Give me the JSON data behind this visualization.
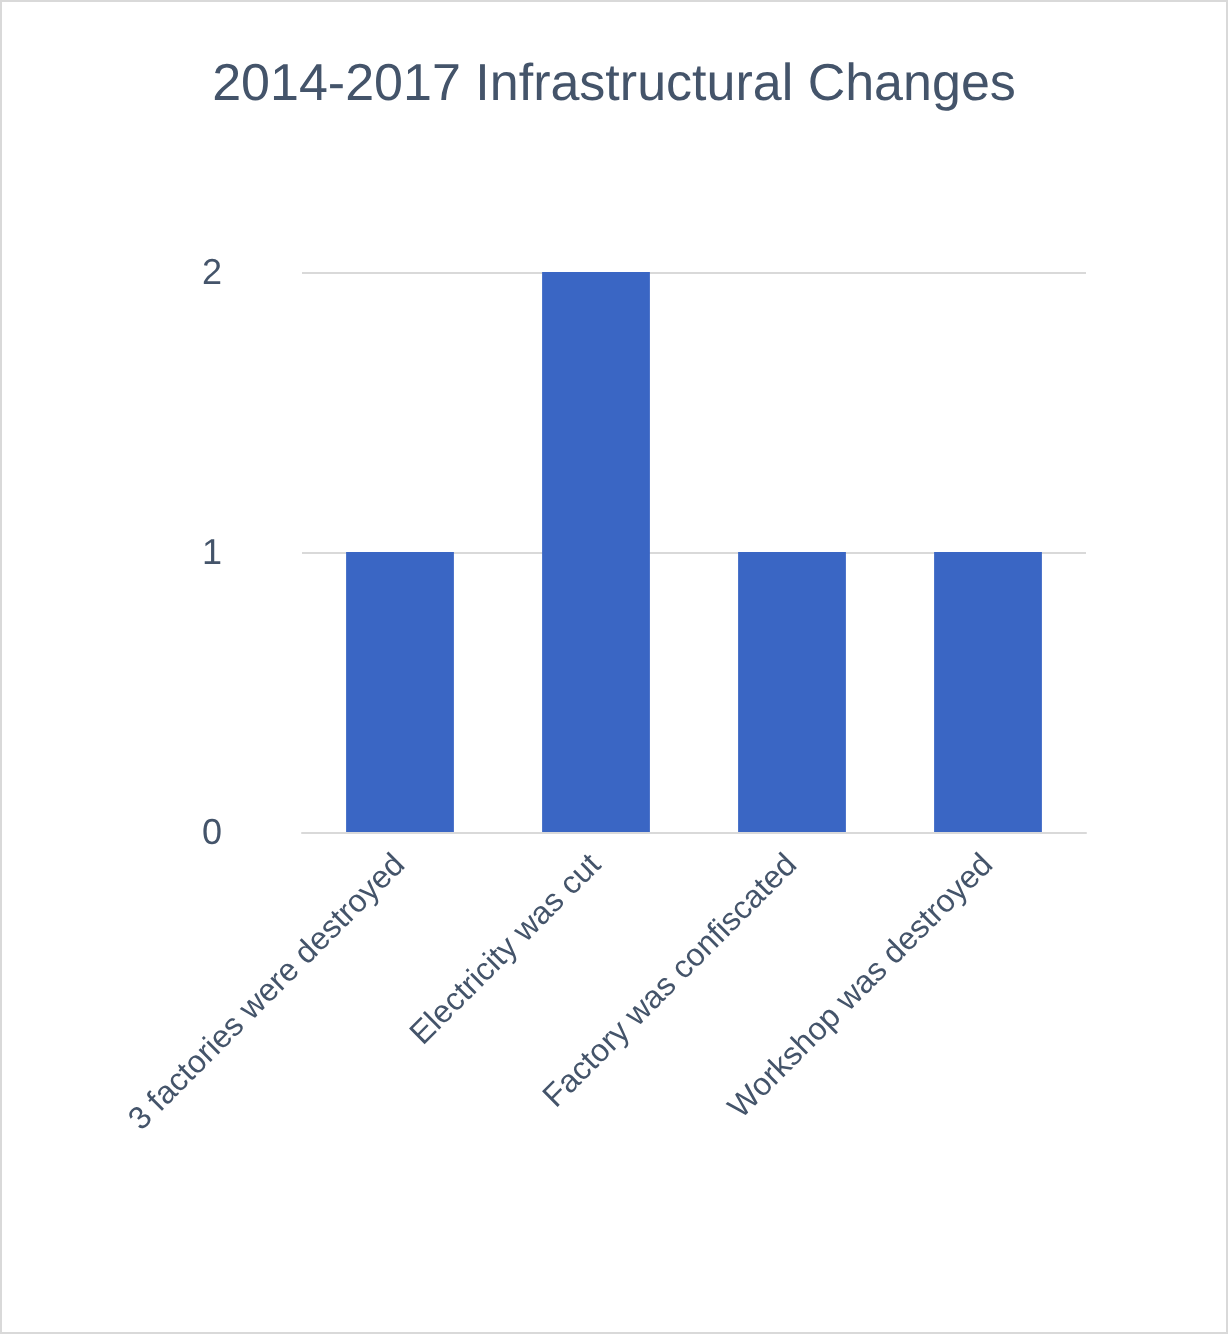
{
  "chart_data": {
    "type": "bar",
    "title": "2014-2017 Infrastructural Changes",
    "categories": [
      "3 factories were destroyed",
      "Electricity was cut",
      "Factory was confiscated",
      "Workshop was destroyed"
    ],
    "values": [
      1,
      2,
      1,
      1
    ],
    "color": "#3a66c4",
    "ylim": [
      0,
      2
    ],
    "yticks": [
      0,
      1,
      2
    ],
    "grid": true
  }
}
